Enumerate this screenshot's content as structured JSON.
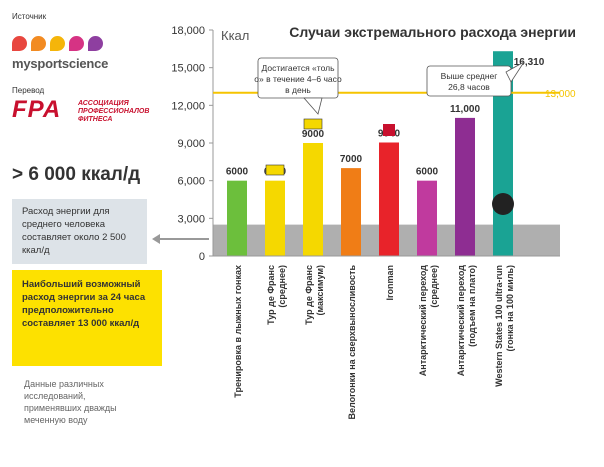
{
  "header": {
    "source_label": "Источник",
    "source_brand": "mysportscience",
    "translation_label": "Перевод",
    "fpa_logo": "FPA",
    "fpa_name": "АССОЦИАЦИЯ ПРОФЕССИОНАЛОВ ФИТНЕСА"
  },
  "colors": {
    "logo_dots": [
      "#e8473f",
      "#f28b22",
      "#f5b50a",
      "#d63384",
      "#8e3fa0"
    ],
    "accent_red": "#c8102e",
    "panel_gray": "#dde3e8",
    "panel_yellow": "#fde100",
    "reference_band": "#a6a6a6",
    "reference_line": "#f5c400"
  },
  "left_panel": {
    "headline": "> 6 000 ккал/д",
    "average_text": "Расход энергии для среднего человека составляет около 2 500 ккал/д",
    "highlight_text": "Наибольший возможный расход энергии за 24 часа предположительно составляет 13 000 ккал/д",
    "footnote": "Данные различных исследований, применявших дважды меченную воду"
  },
  "chart_data": {
    "type": "bar",
    "title": "Случаи экстремального расхода энергии",
    "ylabel": "Ккал",
    "ylim": [
      0,
      18000
    ],
    "yticks": [
      "0",
      "3,000",
      "6,000",
      "9,000",
      "12,000",
      "15,000",
      "18,000"
    ],
    "yticks_values": [
      0,
      3000,
      6000,
      9000,
      12000,
      15000,
      18000
    ],
    "grid": false,
    "categories": [
      "Тренировка в лыжных гонках",
      "Тур де Франс (среднее)",
      "Тур де Франс (максимум)",
      "Велогонки на сверхвыносливость",
      "Ironman",
      "Антарктический переход (среднее)",
      "Антарктический переход (подъем на плато)",
      "Western States 100 ultra-run (гонка на 100 миль)"
    ],
    "values": [
      6000,
      6000,
      9000,
      7000,
      9040,
      6000,
      11000,
      16310
    ],
    "value_labels": [
      "6000",
      "6000",
      "9000",
      "7000",
      "9040",
      "6000",
      "11,000",
      "16,310"
    ],
    "bar_colors": [
      "#6cbf3c",
      "#f5d800",
      "#f5d800",
      "#f07d16",
      "#e8232a",
      "#c03a9e",
      "#8e2d92",
      "#1aa394"
    ],
    "reference_band": {
      "min": 0,
      "max": 2500
    },
    "reference_line": {
      "value": 13000,
      "label": "13,000"
    },
    "annotations": [
      {
        "text": "Достигается «только» в течение 4–6 часов в день",
        "target": 2
      },
      {
        "text": "Выше среднего 26,8 часов",
        "target": 7
      }
    ]
  }
}
